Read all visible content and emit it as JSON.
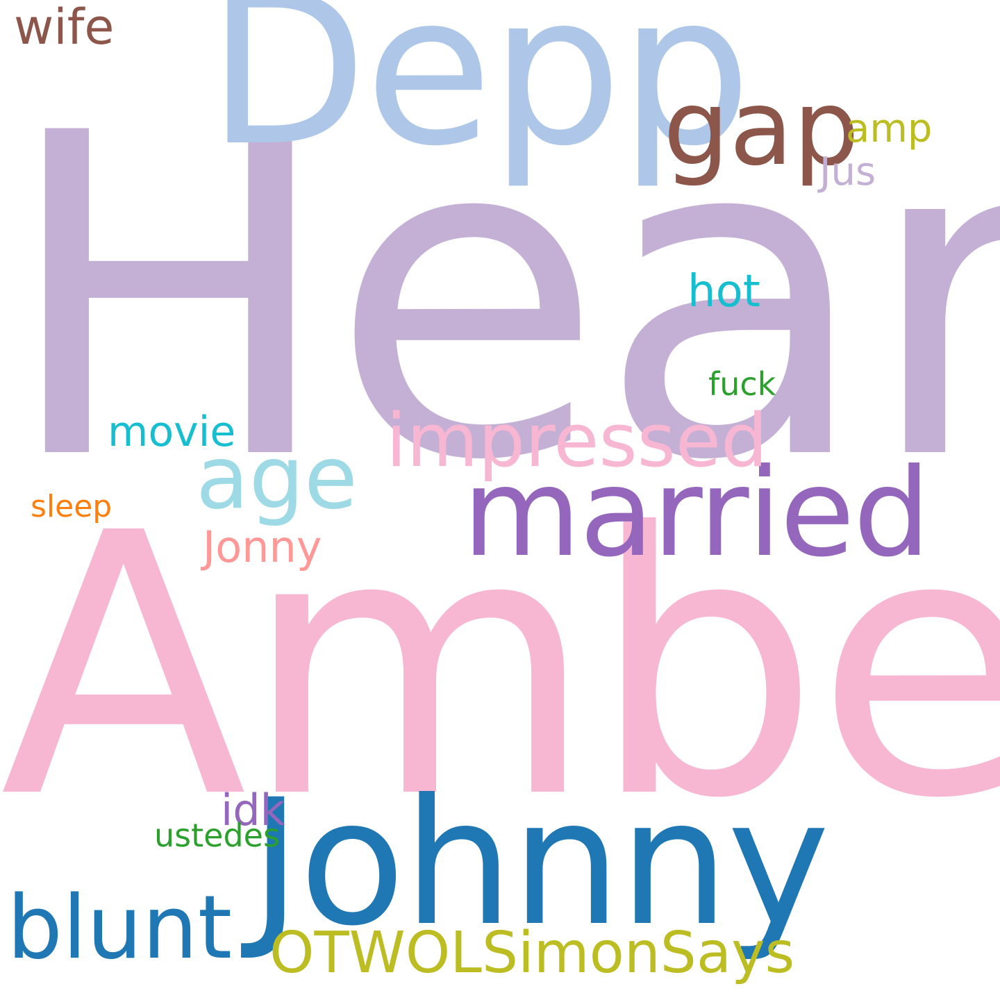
{
  "words": {
    "heard": {
      "text": "Heard",
      "color": "#c5b0d5"
    },
    "amber": {
      "text": "Amber",
      "color": "#f7b6d2"
    },
    "depp": {
      "text": "Depp",
      "color": "#aec7e8"
    },
    "johnny": {
      "text": "Johnny",
      "color": "#1f77b4"
    },
    "married": {
      "text": "married",
      "color": "#9467bd"
    },
    "gap": {
      "text": "gap",
      "color": "#8c564b"
    },
    "impressed": {
      "text": "impressed",
      "color": "#f7b6d2"
    },
    "age": {
      "text": "age",
      "color": "#9edae5"
    },
    "blunt": {
      "text": "blunt",
      "color": "#1f77b4"
    },
    "otwol": {
      "text": "OTWOLSimonSays",
      "color": "#bcbd22"
    },
    "wife": {
      "text": "wife",
      "color": "#8c564b"
    },
    "amp": {
      "text": "amp",
      "color": "#bcbd22"
    },
    "jus": {
      "text": "Jus",
      "color": "#c5b0d5"
    },
    "hot": {
      "text": "hot",
      "color": "#17becf"
    },
    "fuck": {
      "text": "fuck",
      "color": "#2ca02c"
    },
    "movie": {
      "text": "movie",
      "color": "#17becf"
    },
    "sleep": {
      "text": "sleep",
      "color": "#ff7f0e"
    },
    "jonny": {
      "text": "Jonny",
      "color": "#ff9896"
    },
    "idk": {
      "text": "idk",
      "color": "#9467bd"
    },
    "ustedes": {
      "text": "ustedes",
      "color": "#2ca02c"
    }
  }
}
